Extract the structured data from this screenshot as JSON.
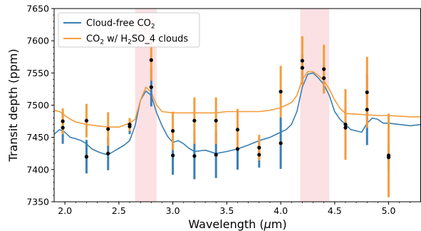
{
  "chart_data": {
    "type": "line",
    "xlabel_main": "Wavelength (",
    "xlabel_mu": "μ",
    "xlabel_tail": "m)",
    "ylabel": "Transit depth (ppm)",
    "xlim": [
      1.9,
      5.3
    ],
    "ylim": [
      7350,
      7650
    ],
    "x_ticks": [
      "2.0",
      "2.5",
      "3.0",
      "3.5",
      "4.0",
      "4.5",
      "5.0"
    ],
    "y_ticks": [
      "7350",
      "7400",
      "7450",
      "7500",
      "7550",
      "7600",
      "7650"
    ],
    "legend": {
      "placement": "top-left",
      "entries": [
        {
          "label_parts": [
            "Cloud-free CO",
            "2",
            ""
          ]
        },
        {
          "label_parts": [
            "CO",
            "2",
            " w/ H",
            "2",
            "SO_4 clouds"
          ]
        }
      ]
    },
    "colors": {
      "cloud_free": "#3a7fb5",
      "clouds": "#f59c3c",
      "band": "#fadadd",
      "points": "#000000"
    },
    "shaded_bands": [
      [
        2.65,
        2.85
      ],
      [
        4.18,
        4.45
      ]
    ],
    "series": [
      {
        "key": "cloud_free",
        "x": [
          1.9,
          1.95,
          2.0,
          2.05,
          2.1,
          2.15,
          2.2,
          2.25,
          2.3,
          2.35,
          2.4,
          2.45,
          2.5,
          2.55,
          2.6,
          2.65,
          2.7,
          2.75,
          2.8,
          2.85,
          2.9,
          2.95,
          3.0,
          3.05,
          3.1,
          3.15,
          3.2,
          3.3,
          3.4,
          3.5,
          3.6,
          3.7,
          3.8,
          3.9,
          4.0,
          4.05,
          4.1,
          4.15,
          4.2,
          4.25,
          4.3,
          4.35,
          4.4,
          4.45,
          4.5,
          4.55,
          4.6,
          4.65,
          4.7,
          4.75,
          4.8,
          4.85,
          4.9,
          4.95,
          5.0,
          5.1,
          5.2,
          5.3
        ],
        "y": [
          7455,
          7462,
          7458,
          7450,
          7448,
          7445,
          7440,
          7432,
          7428,
          7425,
          7423,
          7428,
          7433,
          7438,
          7445,
          7468,
          7508,
          7522,
          7515,
          7488,
          7468,
          7452,
          7442,
          7445,
          7440,
          7433,
          7428,
          7430,
          7425,
          7428,
          7432,
          7438,
          7445,
          7450,
          7458,
          7462,
          7470,
          7490,
          7528,
          7548,
          7550,
          7542,
          7532,
          7515,
          7490,
          7478,
          7470,
          7462,
          7460,
          7458,
          7472,
          7480,
          7478,
          7472,
          7472,
          7470,
          7468,
          7470
        ]
      },
      {
        "key": "clouds",
        "x": [
          1.9,
          1.95,
          2.0,
          2.05,
          2.1,
          2.15,
          2.2,
          2.3,
          2.4,
          2.5,
          2.6,
          2.65,
          2.7,
          2.75,
          2.8,
          2.85,
          2.9,
          3.0,
          3.1,
          3.2,
          3.3,
          3.4,
          3.5,
          3.6,
          3.7,
          3.8,
          3.9,
          4.0,
          4.1,
          4.15,
          4.2,
          4.25,
          4.3,
          4.35,
          4.4,
          4.45,
          4.5,
          4.55,
          4.6,
          4.7,
          4.8,
          4.9,
          5.0,
          5.1,
          5.2,
          5.3
        ],
        "y": [
          7492,
          7490,
          7484,
          7478,
          7474,
          7472,
          7470,
          7468,
          7466,
          7466,
          7472,
          7478,
          7508,
          7528,
          7520,
          7500,
          7490,
          7488,
          7488,
          7488,
          7488,
          7488,
          7490,
          7490,
          7490,
          7490,
          7492,
          7496,
          7504,
          7515,
          7540,
          7552,
          7552,
          7546,
          7538,
          7525,
          7508,
          7495,
          7487,
          7486,
          7485,
          7484,
          7484,
          7483,
          7482,
          7482
        ]
      }
    ],
    "observations": [
      {
        "x": 1.98,
        "y_clouds": 7475,
        "y_clear": 7465,
        "err_clouds": 20,
        "err_clear": 25
      },
      {
        "x": 2.2,
        "y_clouds": 7476,
        "y_clear": 7420,
        "err_clouds": 26,
        "err_clear": 26
      },
      {
        "x": 2.4,
        "y_clouds": 7463,
        "y_clear": 7425,
        "err_clouds": 26,
        "err_clear": 26
      },
      {
        "x": 2.6,
        "y_clouds": 7470,
        "y_clear": 7467,
        "err_clouds": 10,
        "err_clear": 12
      },
      {
        "x": 2.8,
        "y_clouds": 7570,
        "y_clear": 7528,
        "err_clouds": 32,
        "err_clear": 30
      },
      {
        "x": 3.0,
        "y_clouds": 7460,
        "y_clear": 7422,
        "err_clouds": 30,
        "err_clear": 30
      },
      {
        "x": 3.2,
        "y_clouds": 7476,
        "y_clear": 7421,
        "err_clouds": 36,
        "err_clear": 36
      },
      {
        "x": 3.4,
        "y_clouds": 7476,
        "y_clear": 7423,
        "err_clouds": 36,
        "err_clear": 36
      },
      {
        "x": 3.6,
        "y_clouds": 7462,
        "y_clear": 7432,
        "err_clouds": 32,
        "err_clear": 32
      },
      {
        "x": 3.8,
        "y_clouds": 7434,
        "y_clear": 7423,
        "err_clouds": 20,
        "err_clear": 20
      },
      {
        "x": 4.0,
        "y_clouds": 7521,
        "y_clear": 7441,
        "err_clouds": 40,
        "err_clear": 40
      },
      {
        "x": 4.2,
        "y_clouds": 7569,
        "y_clear": 7558,
        "err_clouds": 38,
        "err_clear": 20
      },
      {
        "x": 4.4,
        "y_clouds": 7556,
        "y_clear": 7542,
        "err_clouds": 38,
        "err_clear": 20
      },
      {
        "x": 4.6,
        "y_clouds": 7470,
        "y_clear": 7465,
        "err_clouds": 55,
        "err_clear": 48
      },
      {
        "x": 4.8,
        "y_clouds": 7520,
        "y_clear": 7493,
        "err_clouds": 55,
        "err_clear": 55
      },
      {
        "x": 5.0,
        "y_clouds": 7422,
        "y_clear": 7419,
        "err_clouds": 65,
        "err_clear": 20
      }
    ]
  }
}
